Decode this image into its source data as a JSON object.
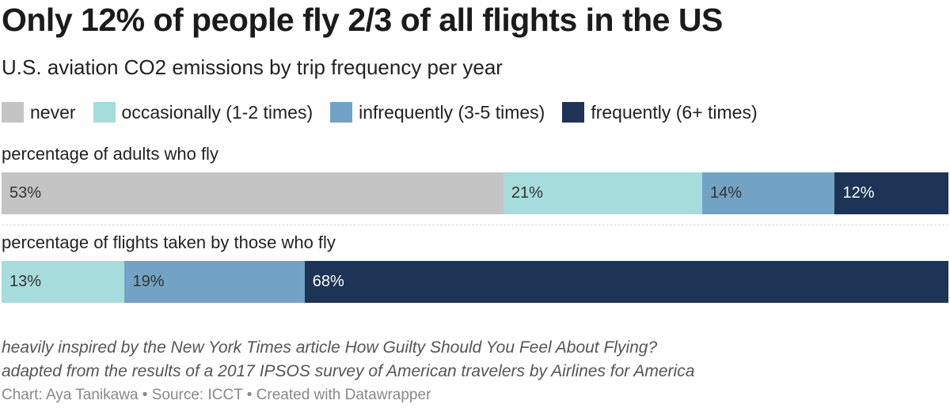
{
  "title": "Only 12% of people fly 2/3 of all flights in the US",
  "subtitle": "U.S. aviation CO2 emissions by trip frequency per year",
  "legend": [
    {
      "label": "never",
      "color": "#c4c4c4"
    },
    {
      "label": "occasionally (1-2 times)",
      "color": "#a6dcdc"
    },
    {
      "label": "infrequently (3-5 times)",
      "color": "#72a3c4"
    },
    {
      "label": "frequently (6+ times)",
      "color": "#1e3456"
    }
  ],
  "chart_data": {
    "type": "bar",
    "stacked": true,
    "orientation": "horizontal",
    "categories": [
      "percentage of adults who fly",
      "percentage of flights taken by those who fly"
    ],
    "series": [
      {
        "name": "never",
        "color": "#c4c4c4",
        "values": [
          53,
          0
        ],
        "labels": [
          "53%",
          ""
        ]
      },
      {
        "name": "occasionally (1-2 times)",
        "color": "#a6dcdc",
        "values": [
          21,
          13
        ],
        "labels": [
          "21%",
          "13%"
        ]
      },
      {
        "name": "infrequently (3-5 times)",
        "color": "#72a3c4",
        "values": [
          14,
          19
        ],
        "labels": [
          "14%",
          "19%"
        ]
      },
      {
        "name": "frequently (6+ times)",
        "color": "#1e3456",
        "values": [
          12,
          68
        ],
        "labels": [
          "12%",
          "68%"
        ]
      }
    ]
  },
  "notes": [
    "heavily inspired by the New York Times article How Guilty Should You Feel About Flying?",
    "adapted from the results of a 2017 IPSOS survey of American travelers by Airlines for America"
  ],
  "byline": "Chart: Aya Tanikawa • Source: ICCT • Created with Datawrapper"
}
